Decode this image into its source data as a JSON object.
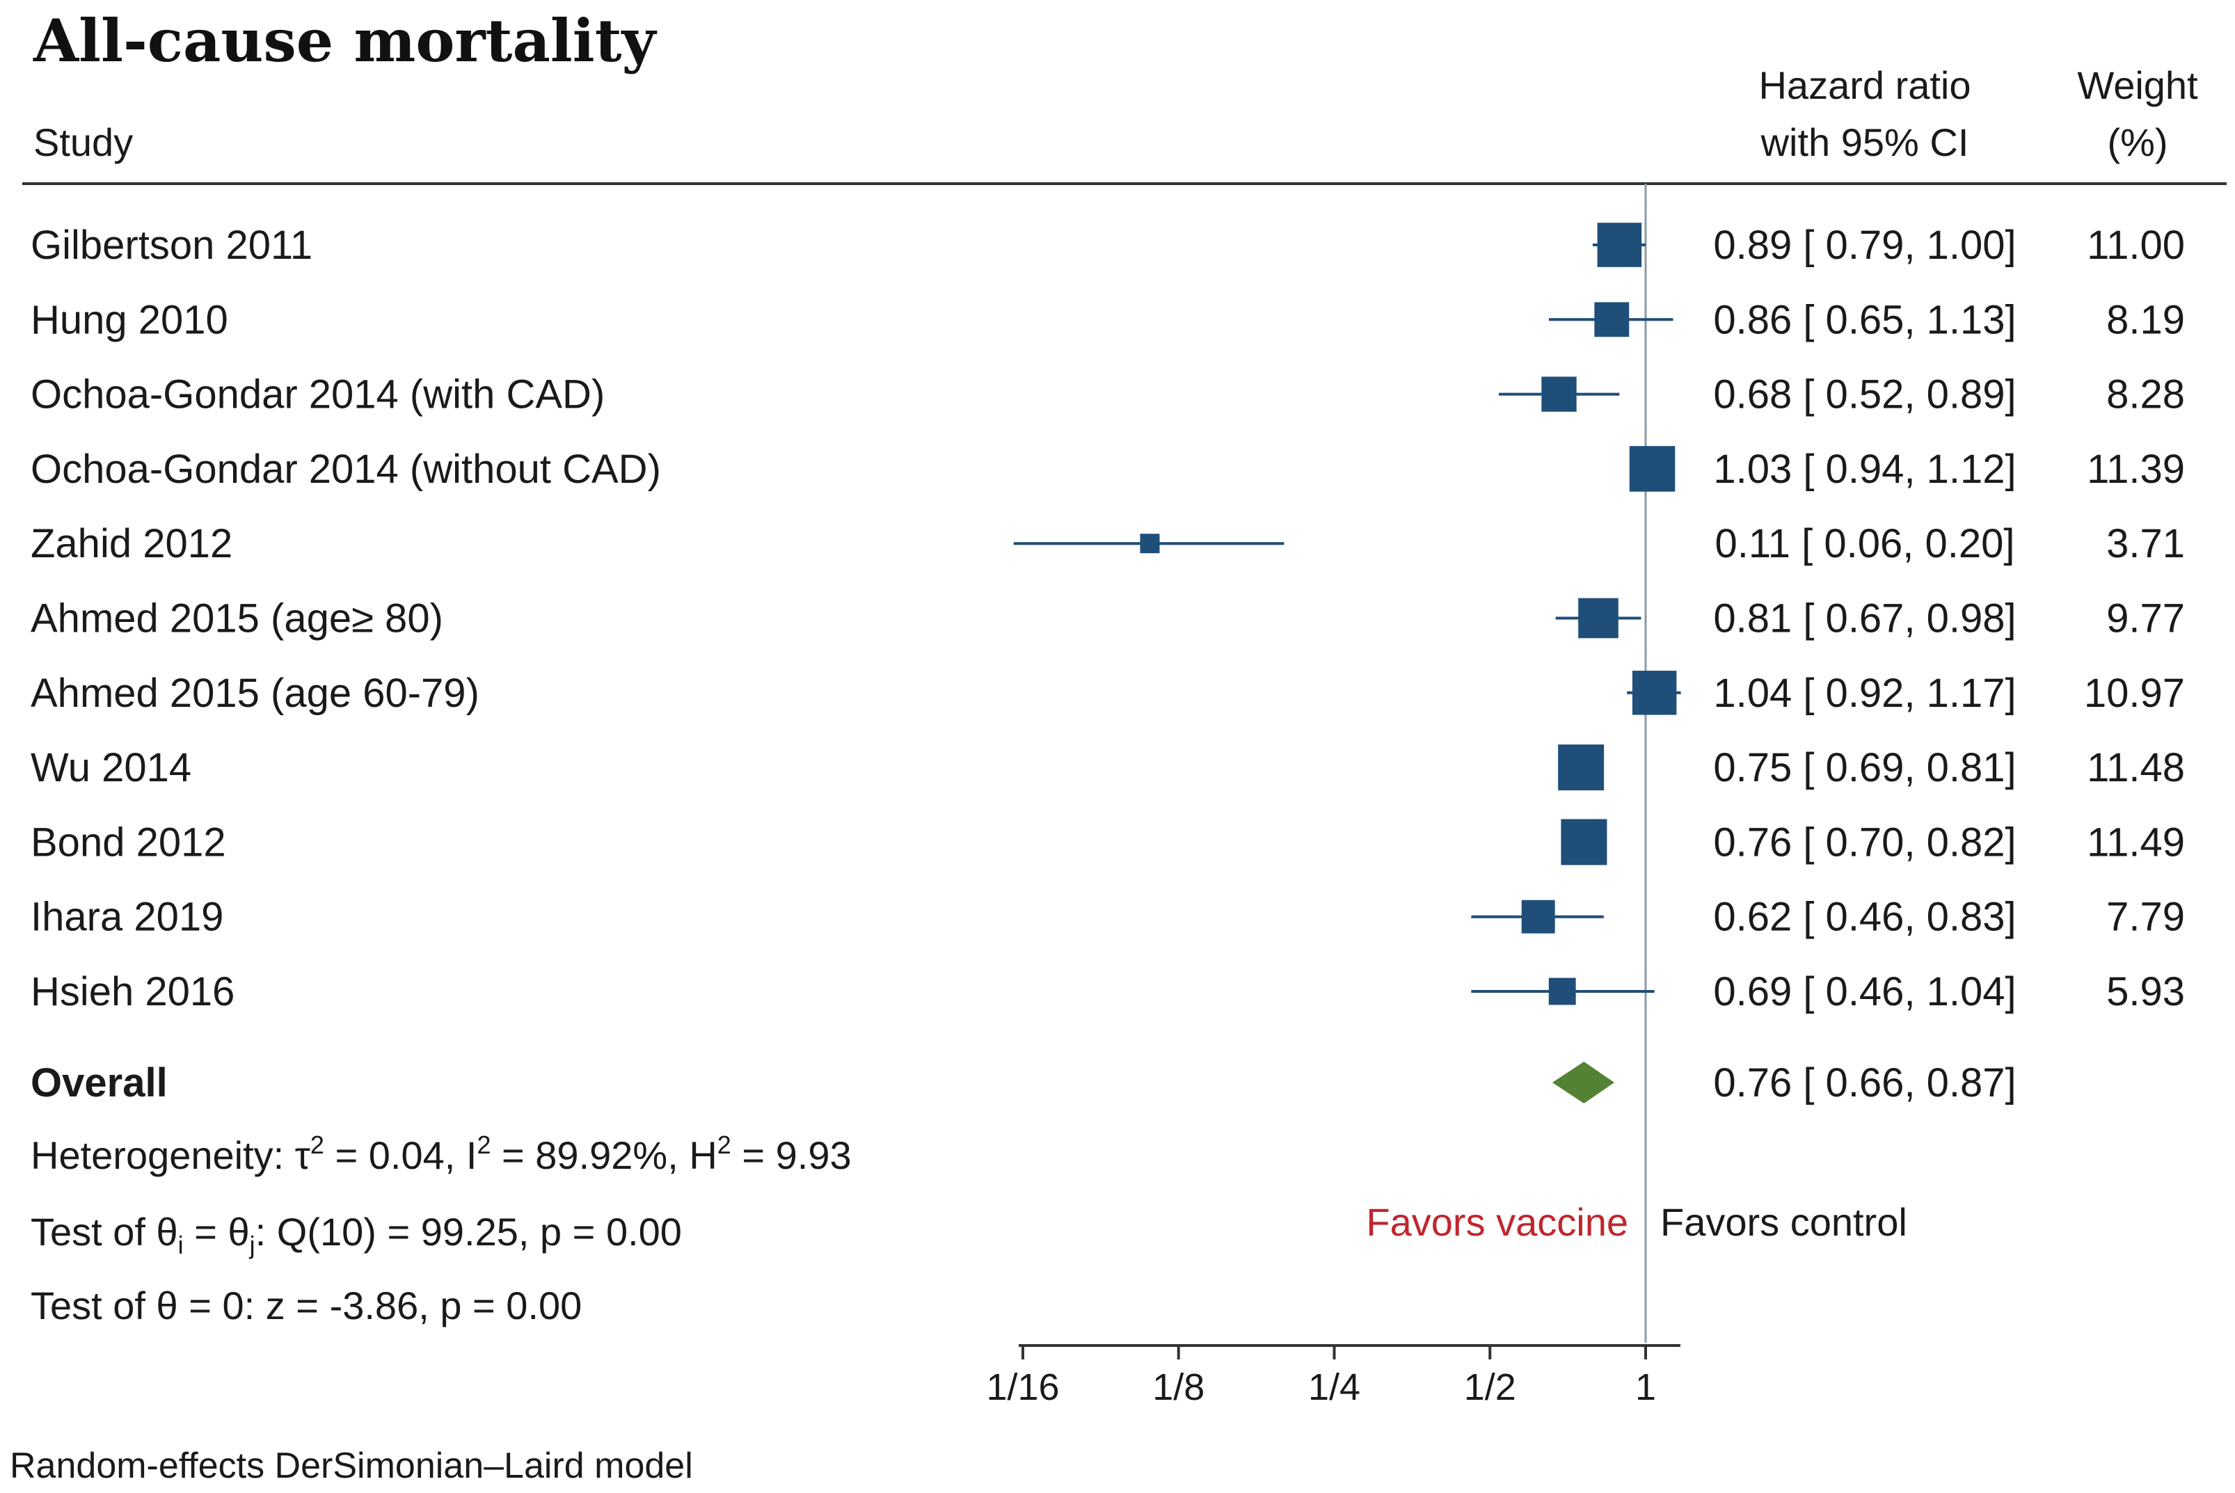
{
  "title": "All-cause mortality",
  "header": {
    "study": "Study",
    "hr_line1": "Hazard ratio",
    "hr_line2": "with 95% CI",
    "weight_line1": "Weight",
    "weight_line2": "(%)"
  },
  "chart_data": {
    "type": "forest",
    "scale": "log2",
    "xlim": [
      0.0625,
      1.0
    ],
    "reference_line": 1,
    "ticks": [
      {
        "value": 0.0625,
        "label": "1/16"
      },
      {
        "value": 0.125,
        "label": "1/8"
      },
      {
        "value": 0.25,
        "label": "1/4"
      },
      {
        "value": 0.5,
        "label": "1/2"
      },
      {
        "value": 1,
        "label": "1"
      }
    ],
    "studies": [
      {
        "name": "Gilbertson 2011",
        "hr": 0.89,
        "lo": 0.79,
        "hi": 1.0,
        "ci_text": "0.89 [ 0.79,  1.00]",
        "weight": 11.0,
        "weight_text": "11.00"
      },
      {
        "name": "Hung 2010",
        "hr": 0.86,
        "lo": 0.65,
        "hi": 1.13,
        "ci_text": "0.86 [ 0.65,  1.13]",
        "weight": 8.19,
        "weight_text": "8.19"
      },
      {
        "name": "Ochoa-Gondar 2014 (with CAD)",
        "hr": 0.68,
        "lo": 0.52,
        "hi": 0.89,
        "ci_text": "0.68 [ 0.52,  0.89]",
        "weight": 8.28,
        "weight_text": "8.28"
      },
      {
        "name": "Ochoa-Gondar 2014 (without CAD)",
        "hr": 1.03,
        "lo": 0.94,
        "hi": 1.12,
        "ci_text": "1.03 [ 0.94,  1.12]",
        "weight": 11.39,
        "weight_text": "11.39"
      },
      {
        "name": "Zahid 2012",
        "hr": 0.11,
        "lo": 0.06,
        "hi": 0.2,
        "ci_text": "0.11 [ 0.06,  0.20]",
        "weight": 3.71,
        "weight_text": "3.71"
      },
      {
        "name": "Ahmed 2015 (age≥ 80)",
        "hr": 0.81,
        "lo": 0.67,
        "hi": 0.98,
        "ci_text": "0.81 [ 0.67,  0.98]",
        "weight": 9.77,
        "weight_text": "9.77"
      },
      {
        "name": "Ahmed 2015 (age 60-79)",
        "hr": 1.04,
        "lo": 0.92,
        "hi": 1.17,
        "ci_text": "1.04 [ 0.92,  1.17]",
        "weight": 10.97,
        "weight_text": "10.97"
      },
      {
        "name": "Wu 2014",
        "hr": 0.75,
        "lo": 0.69,
        "hi": 0.81,
        "ci_text": "0.75 [ 0.69,  0.81]",
        "weight": 11.48,
        "weight_text": "11.48"
      },
      {
        "name": "Bond 2012",
        "hr": 0.76,
        "lo": 0.7,
        "hi": 0.82,
        "ci_text": "0.76 [ 0.70,  0.82]",
        "weight": 11.49,
        "weight_text": "11.49"
      },
      {
        "name": "Ihara 2019",
        "hr": 0.62,
        "lo": 0.46,
        "hi": 0.83,
        "ci_text": "0.62 [ 0.46,  0.83]",
        "weight": 7.79,
        "weight_text": "7.79"
      },
      {
        "name": "Hsieh 2016",
        "hr": 0.69,
        "lo": 0.46,
        "hi": 1.04,
        "ci_text": "0.69 [ 0.46,  1.04]",
        "weight": 5.93,
        "weight_text": "5.93"
      }
    ],
    "overall": {
      "label": "Overall",
      "hr": 0.76,
      "lo": 0.66,
      "hi": 0.87,
      "ci_text": "0.76 [ 0.66,  0.87]"
    },
    "favors_left": "Favors vaccine",
    "favors_right": "Favors control"
  },
  "stats": {
    "heterogeneity": {
      "prefix": "Heterogeneity: τ",
      "tau_sup": "2",
      "mid1": " = 0.04, I",
      "i_sup": "2",
      "mid2": " = 89.92%, H",
      "h_sup": "2",
      "end": " = 9.93"
    },
    "test_theta_ij": {
      "prefix": "Test of θ",
      "sub_i": "i",
      "mid": " = θ",
      "sub_j": "j",
      "end": ": Q(10) = 99.25, p = 0.00"
    },
    "test_theta_zero": "Test of θ = 0: z = -3.86, p = 0.00"
  },
  "footnote": "Random-effects DerSimonian–Laird model",
  "colors": {
    "marker": "#1f4e79",
    "diamond": "#548235",
    "favors_vaccine": "#c0262d",
    "text": "#1a1a1a",
    "refline": "#8c9aa6"
  }
}
